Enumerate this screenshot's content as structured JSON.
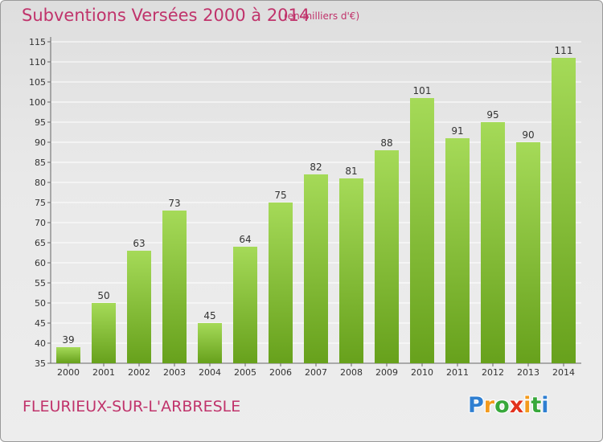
{
  "header": {
    "title": "Subventions Versées 2000 à 2014",
    "subtitle": "(en milliers d'€)"
  },
  "footer": {
    "commune": "FLEURIEUX-SUR-L'ARBRESLE",
    "logo": {
      "letters": [
        "P",
        "r",
        "o",
        "x",
        "i",
        "t",
        "i"
      ],
      "colors": [
        "#2f7fd1",
        "#f39a1d",
        "#38a83b",
        "#e2311d",
        "#f39a1d",
        "#38a83b",
        "#2f7fd1"
      ]
    }
  },
  "colors": {
    "accent": "#c0336b",
    "bar_light": "#a5da58",
    "bar_dark": "#67a11c"
  },
  "chart_data": {
    "type": "bar",
    "categories": [
      "2000",
      "2001",
      "2002",
      "2003",
      "2004",
      "2005",
      "2006",
      "2007",
      "2008",
      "2009",
      "2010",
      "2011",
      "2012",
      "2013",
      "2014"
    ],
    "values": [
      39,
      50,
      63,
      73,
      45,
      64,
      75,
      82,
      81,
      88,
      101,
      91,
      95,
      90,
      111
    ],
    "data_labels": [
      "39",
      "50",
      "63",
      "73",
      "45",
      "64",
      "75",
      "82",
      "81",
      "88",
      "101",
      "91",
      "95",
      "90",
      "111"
    ],
    "yticks": [
      "35",
      "40",
      "45",
      "50",
      "55",
      "60",
      "65",
      "70",
      "75",
      "80",
      "85",
      "90",
      "95",
      "100",
      "105",
      "110",
      "115"
    ],
    "ylim": [
      35,
      115
    ],
    "ystep": 5,
    "grid": true,
    "title": "Subventions Versées 2000 à 2014",
    "xlabel": "",
    "ylabel": ""
  }
}
